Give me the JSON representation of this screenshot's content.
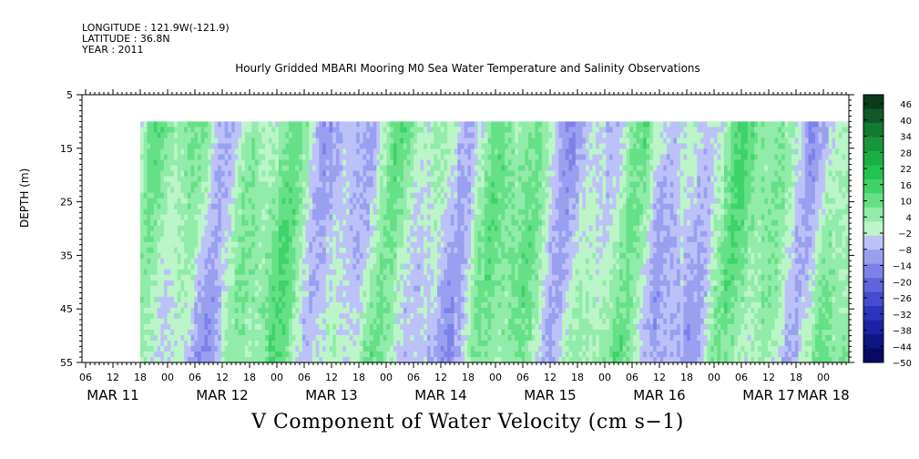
{
  "header": {
    "longitude": "LONGITUDE : 121.9W(-121.9)",
    "latitude": "LATITUDE : 36.8N",
    "year": "YEAR : 2011"
  },
  "chart_data": {
    "type": "heatmap",
    "title": "Hourly Gridded MBARI Mooring M0 Sea Water Temperature and Salinity Observations",
    "xlabel": "",
    "ylabel": "DEPTH (m)",
    "colorbar_label": "V Component of Water Velocity (cm s−1)",
    "y_ticks": [
      5,
      15,
      25,
      35,
      45,
      55
    ],
    "ylim": [
      55,
      5
    ],
    "data_depth_range": [
      10,
      55
    ],
    "x_hour_ticks": [
      "06",
      "12",
      "18",
      "00",
      "06",
      "12",
      "18",
      "00",
      "06",
      "12",
      "18",
      "00",
      "06",
      "12",
      "18",
      "00",
      "06",
      "12",
      "18",
      "00",
      "06",
      "12",
      "18",
      "00",
      "06",
      "12",
      "18",
      "00"
    ],
    "x_date_labels": [
      "MAR 11",
      "MAR 12",
      "MAR 13",
      "MAR 14",
      "MAR 15",
      "MAR 16",
      "MAR 17",
      "MAR 18"
    ],
    "data_start": "MAR 11 12:00",
    "data_end": "MAR 18 07:00",
    "colorbar_ticks": [
      "46",
      "40",
      "34",
      "28",
      "22",
      "16",
      "10",
      "4",
      "−2",
      "−8",
      "−14",
      "−20",
      "−26",
      "−32",
      "−38",
      "−44",
      "−50"
    ],
    "colorbar_colors": [
      "#0b3a1b",
      "#0f5a26",
      "#137a31",
      "#17963c",
      "#1bb045",
      "#22c450",
      "#3fd36a",
      "#66e086",
      "#90eca8",
      "#bbf5c8",
      "#bcc2f8",
      "#9aa0f0",
      "#7c82e8",
      "#5f66dd",
      "#444cd0",
      "#2b34bd",
      "#1a22a3",
      "#0e1585",
      "#060b62"
    ],
    "dominant_range": [
      -20,
      16
    ]
  }
}
